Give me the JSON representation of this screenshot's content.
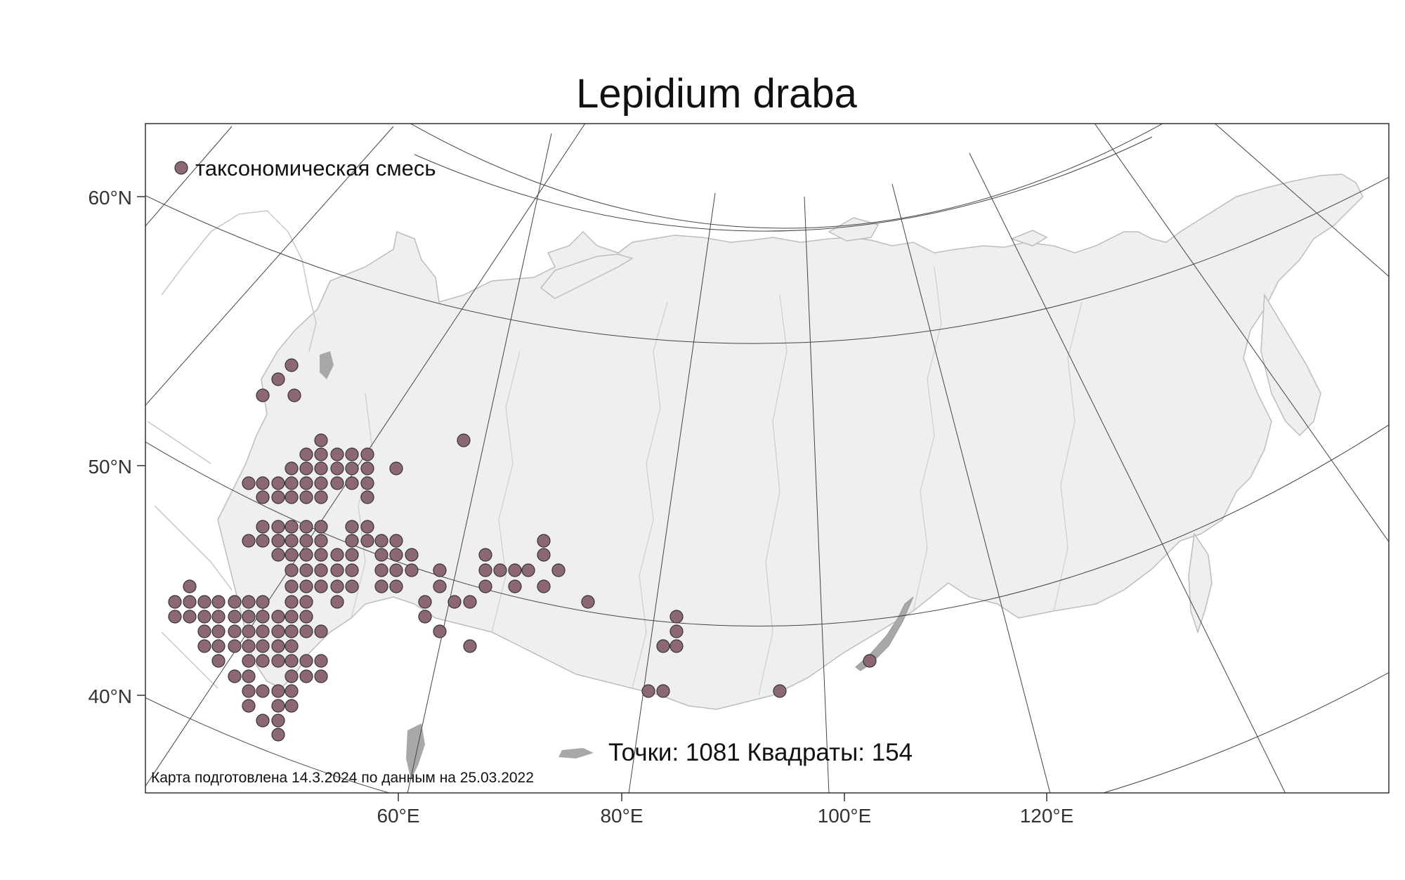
{
  "title": "Lepidium draba",
  "legend": {
    "label": "таксономическая смесь",
    "marker_color": "#8c6872"
  },
  "stats": "Точки: 1081 Квадраты: 154",
  "footnote": "Карта подготовлена 14.3.2024 по данным на 25.03.2022",
  "lat_labels": [
    "60°N",
    "50°N",
    "40°N"
  ],
  "lon_labels": [
    "60°E",
    "80°E",
    "100°E",
    "120°E"
  ],
  "colors": {
    "land": "#efefef",
    "coast": "#bdbdbd",
    "graticule": "#444444",
    "frame": "#333333",
    "lakes": "#a8a8a8"
  },
  "occurrence_grid_icons": "circle-marker"
}
